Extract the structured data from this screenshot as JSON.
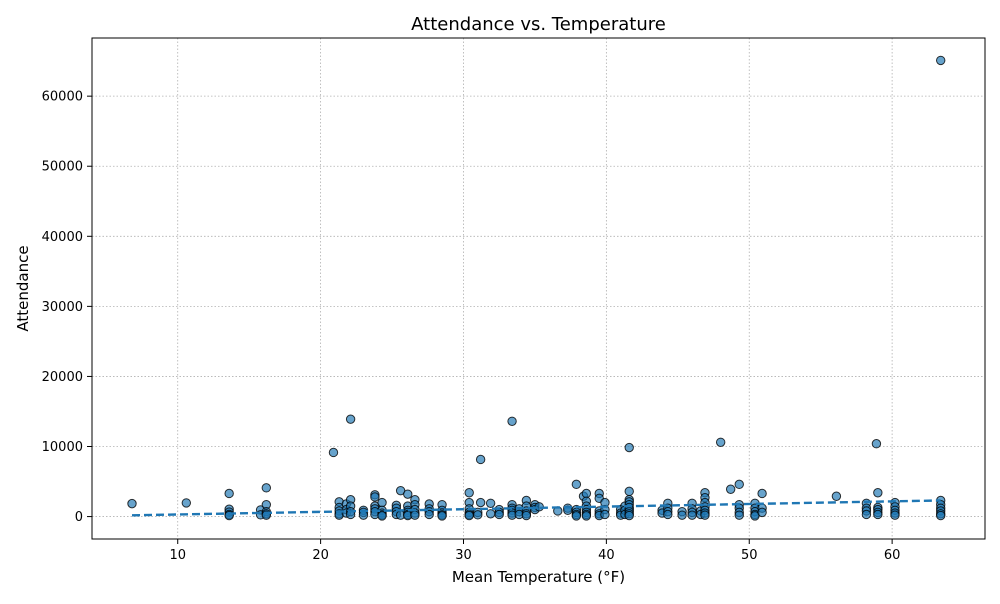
{
  "chart_data": {
    "type": "scatter",
    "title": "Attendance vs. Temperature",
    "xlabel": "Mean Temperature (°F)",
    "ylabel": "Attendance",
    "xlim": [
      4,
      66.5
    ],
    "ylim": [
      -3200,
      68300
    ],
    "xticks": [
      10,
      20,
      30,
      40,
      50,
      60
    ],
    "yticks": [
      0,
      10000,
      20000,
      30000,
      40000,
      50000,
      60000
    ],
    "grid": true,
    "point_color": "#1f77b4",
    "point_edge_color": "#000000",
    "trend_color": "#1f77b4",
    "points": [
      [
        6.8,
        1850
      ],
      [
        10.6,
        1950
      ],
      [
        13.6,
        3300
      ],
      [
        13.6,
        1050
      ],
      [
        13.6,
        650
      ],
      [
        13.6,
        300
      ],
      [
        13.6,
        150
      ],
      [
        15.8,
        950
      ],
      [
        15.8,
        250
      ],
      [
        16.2,
        4100
      ],
      [
        16.2,
        1700
      ],
      [
        16.2,
        700
      ],
      [
        16.2,
        400
      ],
      [
        16.2,
        200
      ],
      [
        20.9,
        9150
      ],
      [
        21.3,
        2100
      ],
      [
        21.3,
        1300
      ],
      [
        21.3,
        800
      ],
      [
        21.3,
        400
      ],
      [
        21.3,
        200
      ],
      [
        21.8,
        1800
      ],
      [
        21.8,
        1000
      ],
      [
        21.8,
        500
      ],
      [
        22.1,
        13900
      ],
      [
        22.1,
        2400
      ],
      [
        22.1,
        1500
      ],
      [
        22.1,
        700
      ],
      [
        22.1,
        300
      ],
      [
        23.0,
        900
      ],
      [
        23.0,
        600
      ],
      [
        23.0,
        200
      ],
      [
        23.8,
        3100
      ],
      [
        23.8,
        2800
      ],
      [
        23.8,
        1500
      ],
      [
        23.8,
        1100
      ],
      [
        23.8,
        700
      ],
      [
        23.8,
        300
      ],
      [
        24.3,
        2000
      ],
      [
        24.3,
        900
      ],
      [
        24.3,
        500
      ],
      [
        24.3,
        250
      ],
      [
        24.3,
        100
      ],
      [
        25.3,
        1600
      ],
      [
        25.3,
        1200
      ],
      [
        25.3,
        700
      ],
      [
        25.3,
        300
      ],
      [
        25.6,
        3700
      ],
      [
        25.6,
        200
      ],
      [
        26.1,
        3200
      ],
      [
        26.1,
        1500
      ],
      [
        26.1,
        900
      ],
      [
        26.1,
        600
      ],
      [
        26.1,
        300
      ],
      [
        26.1,
        150
      ],
      [
        26.6,
        2400
      ],
      [
        26.6,
        1700
      ],
      [
        26.6,
        1000
      ],
      [
        26.6,
        500
      ],
      [
        26.6,
        200
      ],
      [
        27.6,
        1800
      ],
      [
        27.6,
        1100
      ],
      [
        27.6,
        700
      ],
      [
        27.6,
        300
      ],
      [
        28.5,
        1700
      ],
      [
        28.5,
        900
      ],
      [
        28.5,
        500
      ],
      [
        28.5,
        250
      ],
      [
        28.5,
        100
      ],
      [
        30.4,
        3400
      ],
      [
        30.4,
        2000
      ],
      [
        30.4,
        1100
      ],
      [
        30.4,
        600
      ],
      [
        30.4,
        300
      ],
      [
        30.4,
        150
      ],
      [
        31.0,
        600
      ],
      [
        31.0,
        250
      ],
      [
        31.2,
        8150
      ],
      [
        31.2,
        2000
      ],
      [
        31.9,
        1900
      ],
      [
        31.9,
        400
      ],
      [
        32.5,
        1000
      ],
      [
        32.5,
        600
      ],
      [
        32.5,
        300
      ],
      [
        33.4,
        13600
      ],
      [
        33.4,
        1700
      ],
      [
        33.4,
        1200
      ],
      [
        33.4,
        900
      ],
      [
        33.4,
        500
      ],
      [
        33.4,
        200
      ],
      [
        33.9,
        1100
      ],
      [
        33.9,
        700
      ],
      [
        33.9,
        300
      ],
      [
        34.4,
        2300
      ],
      [
        34.4,
        1500
      ],
      [
        34.4,
        800
      ],
      [
        34.4,
        400
      ],
      [
        34.4,
        150
      ],
      [
        35.0,
        1700
      ],
      [
        35.0,
        1300
      ],
      [
        35.0,
        1000
      ],
      [
        35.3,
        1400
      ],
      [
        36.6,
        800
      ],
      [
        37.3,
        1200
      ],
      [
        37.3,
        900
      ],
      [
        37.9,
        4600
      ],
      [
        37.9,
        1000
      ],
      [
        37.9,
        600
      ],
      [
        37.9,
        300
      ],
      [
        37.9,
        100
      ],
      [
        38.4,
        2900
      ],
      [
        38.6,
        3300
      ],
      [
        38.6,
        2200
      ],
      [
        38.6,
        1500
      ],
      [
        38.6,
        1000
      ],
      [
        38.6,
        600
      ],
      [
        38.6,
        300
      ],
      [
        38.6,
        100
      ],
      [
        39.5,
        3300
      ],
      [
        39.5,
        2600
      ],
      [
        39.5,
        800
      ],
      [
        39.5,
        400
      ],
      [
        39.5,
        150
      ],
      [
        39.9,
        2000
      ],
      [
        39.9,
        1000
      ],
      [
        39.9,
        300
      ],
      [
        41.0,
        1000
      ],
      [
        41.0,
        500
      ],
      [
        41.0,
        200
      ],
      [
        41.3,
        1500
      ],
      [
        41.3,
        900
      ],
      [
        41.3,
        300
      ],
      [
        41.6,
        9850
      ],
      [
        41.6,
        3600
      ],
      [
        41.6,
        2400
      ],
      [
        41.6,
        2100
      ],
      [
        41.6,
        1700
      ],
      [
        41.6,
        1300
      ],
      [
        41.6,
        1000
      ],
      [
        41.6,
        700
      ],
      [
        41.6,
        400
      ],
      [
        41.6,
        150
      ],
      [
        43.9,
        900
      ],
      [
        43.9,
        500
      ],
      [
        44.3,
        1900
      ],
      [
        44.3,
        1200
      ],
      [
        44.3,
        700
      ],
      [
        44.3,
        300
      ],
      [
        45.3,
        700
      ],
      [
        45.3,
        200
      ],
      [
        46.0,
        1900
      ],
      [
        46.0,
        1100
      ],
      [
        46.0,
        600
      ],
      [
        46.0,
        200
      ],
      [
        46.6,
        800
      ],
      [
        46.6,
        300
      ],
      [
        46.9,
        3400
      ],
      [
        46.9,
        2700
      ],
      [
        46.9,
        2000
      ],
      [
        46.9,
        1400
      ],
      [
        46.9,
        900
      ],
      [
        46.9,
        500
      ],
      [
        46.9,
        200
      ],
      [
        48.0,
        10600
      ],
      [
        48.7,
        3900
      ],
      [
        49.3,
        4600
      ],
      [
        49.3,
        1700
      ],
      [
        49.3,
        1200
      ],
      [
        49.3,
        600
      ],
      [
        49.3,
        200
      ],
      [
        50.4,
        1900
      ],
      [
        50.4,
        1200
      ],
      [
        50.4,
        700
      ],
      [
        50.4,
        300
      ],
      [
        50.4,
        100
      ],
      [
        50.9,
        3300
      ],
      [
        50.9,
        1200
      ],
      [
        50.9,
        600
      ],
      [
        56.1,
        2900
      ],
      [
        58.2,
        1900
      ],
      [
        58.2,
        1200
      ],
      [
        58.2,
        800
      ],
      [
        58.2,
        300
      ],
      [
        58.9,
        10400
      ],
      [
        59.0,
        3400
      ],
      [
        59.0,
        1300
      ],
      [
        59.0,
        1000
      ],
      [
        59.0,
        600
      ],
      [
        59.0,
        300
      ],
      [
        60.2,
        2000
      ],
      [
        60.2,
        1400
      ],
      [
        60.2,
        900
      ],
      [
        60.2,
        500
      ],
      [
        60.2,
        200
      ],
      [
        63.4,
        65100
      ],
      [
        63.4,
        2300
      ],
      [
        63.4,
        1700
      ],
      [
        63.4,
        1200
      ],
      [
        63.4,
        800
      ],
      [
        63.4,
        400
      ],
      [
        63.4,
        150
      ]
    ],
    "trendline": {
      "x": [
        6.8,
        63.4
      ],
      "y": [
        180,
        2300
      ]
    }
  }
}
